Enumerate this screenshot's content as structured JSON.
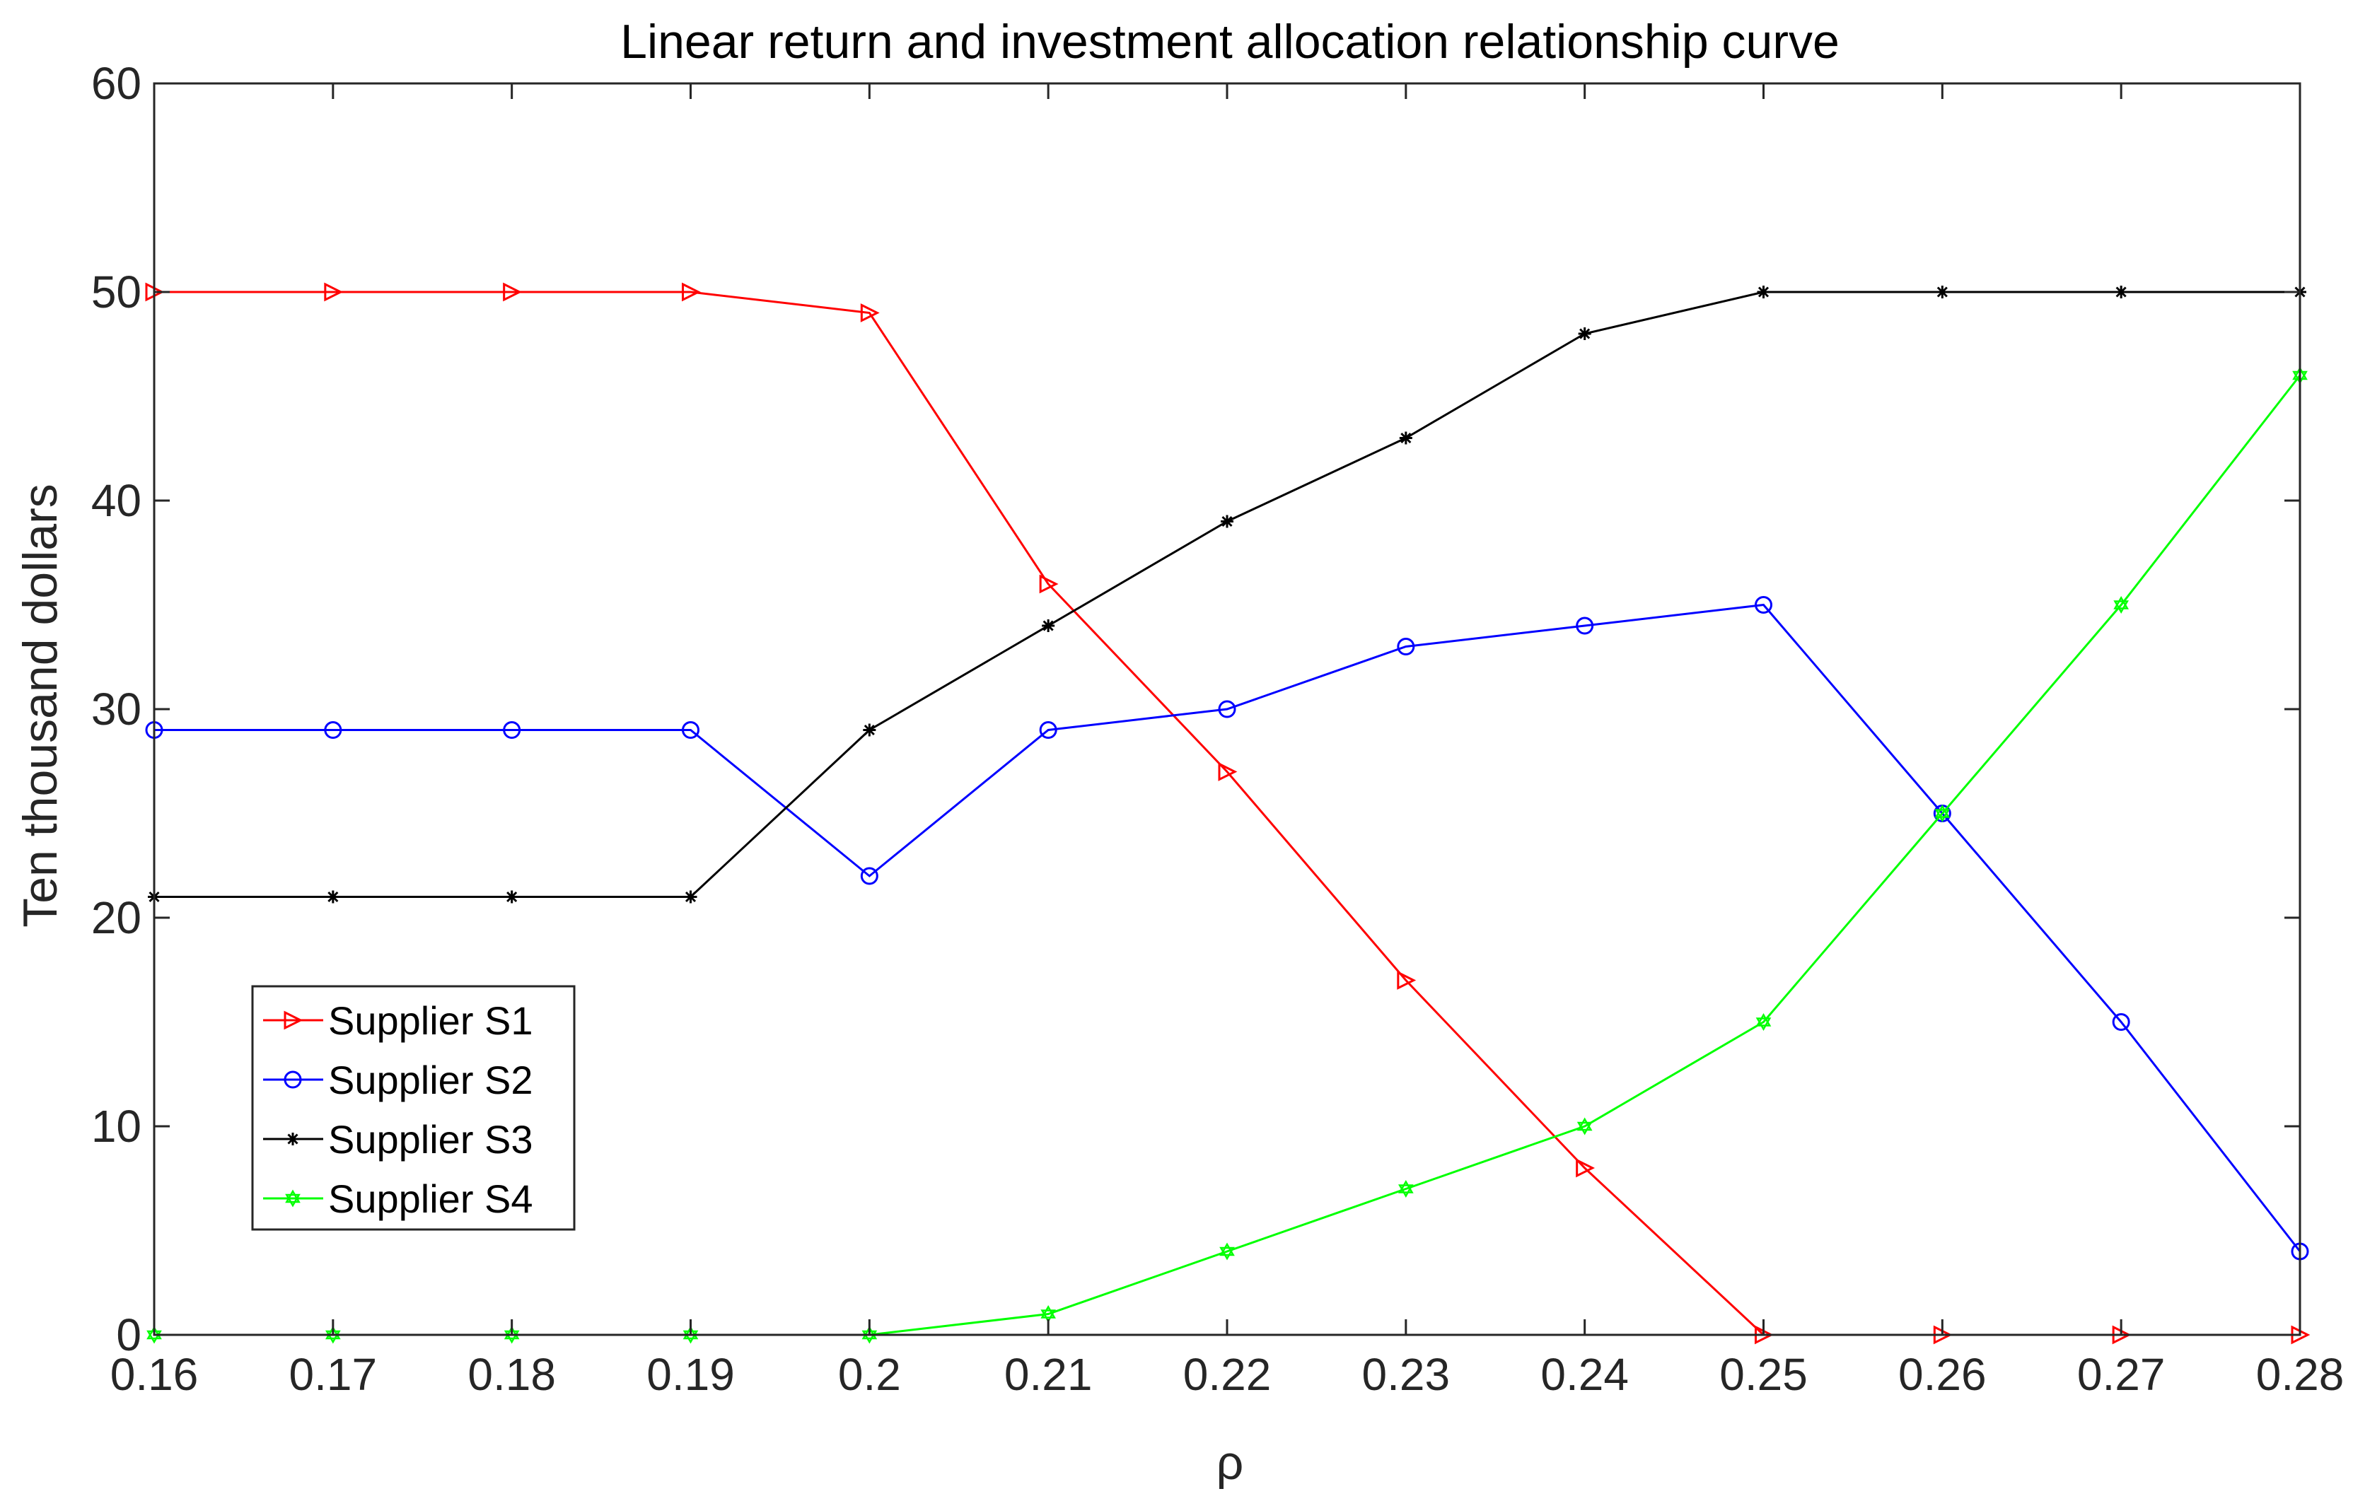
{
  "chart_data": {
    "type": "line",
    "title": "Linear return and investment allocation relationship curve",
    "xlabel": "ρ",
    "ylabel": "Ten thousand dollars",
    "xlim": [
      0.16,
      0.28
    ],
    "ylim": [
      0,
      60
    ],
    "x": [
      0.16,
      0.17,
      0.18,
      0.19,
      0.2,
      0.21,
      0.22,
      0.23,
      0.24,
      0.25,
      0.26,
      0.27,
      0.28
    ],
    "x_tick_labels": [
      "0.16",
      "0.17",
      "0.18",
      "0.19",
      "0.2",
      "0.21",
      "0.22",
      "0.23",
      "0.24",
      "0.25",
      "0.26",
      "0.27",
      "0.28"
    ],
    "y_ticks": [
      0,
      10,
      20,
      30,
      40,
      50,
      60
    ],
    "y_tick_labels": [
      "0",
      "10",
      "20",
      "30",
      "40",
      "50",
      "60"
    ],
    "grid": false,
    "legend_position": "lower-left",
    "series": [
      {
        "name": "Supplier S1",
        "color": "#ff0000",
        "marker": "triangle-right",
        "values": [
          50,
          50,
          50,
          50,
          49,
          36,
          27,
          17,
          8,
          0,
          0,
          0,
          0
        ]
      },
      {
        "name": "Supplier S2",
        "color": "#0000ff",
        "marker": "circle",
        "values": [
          29,
          29,
          29,
          29,
          22,
          29,
          30,
          33,
          34,
          35,
          25,
          15,
          4
        ]
      },
      {
        "name": "Supplier S3",
        "color": "#000000",
        "marker": "asterisk",
        "values": [
          21,
          21,
          21,
          21,
          29,
          34,
          39,
          43,
          48,
          50,
          50,
          50,
          50
        ]
      },
      {
        "name": "Supplier S4",
        "color": "#00ff00",
        "marker": "hexagram",
        "values": [
          0,
          0,
          0,
          0,
          0,
          1,
          4,
          7,
          10,
          15,
          25,
          35,
          46
        ]
      }
    ]
  }
}
